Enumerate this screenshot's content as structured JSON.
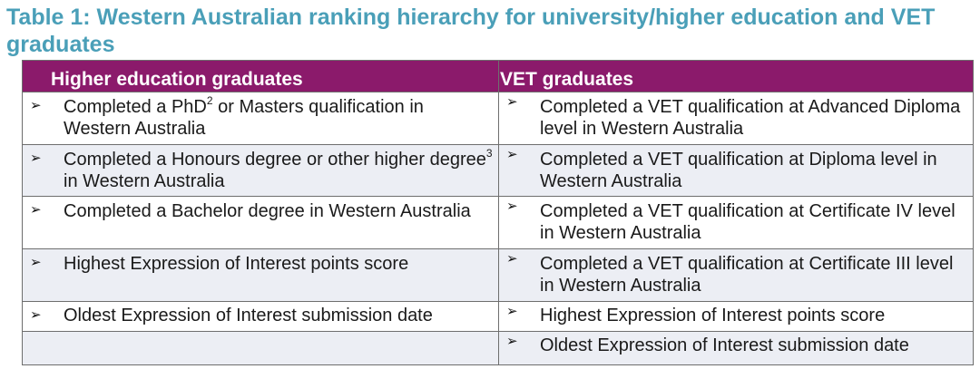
{
  "title": "Table 1: Western Australian ranking hierarchy for university/higher education and VET graduates",
  "headers": {
    "left": "Higher education graduates",
    "right": "VET graduates"
  },
  "arrow_glyph": "➢",
  "rows": [
    {
      "left": {
        "text": "Completed a PhD",
        "sup": "2",
        "text2": " or Masters qualification in Western Australia"
      },
      "right": {
        "text": "Completed a VET qualification at Advanced Diploma level in Western Australia"
      }
    },
    {
      "left": {
        "text": "Completed a Honours degree or other higher degree",
        "sup": "3",
        "text2": " in Western Australia"
      },
      "right": {
        "text": "Completed a VET qualification at Diploma level in Western Australia"
      }
    },
    {
      "left": {
        "text": "Completed a Bachelor degree in Western Australia"
      },
      "right": {
        "text": "Completed a VET qualification at Certificate IV level in Western Australia"
      }
    },
    {
      "left": {
        "text": "Highest Expression of Interest points score"
      },
      "right": {
        "text": "Completed a VET qualification at Certificate III level in Western Australia"
      }
    },
    {
      "left": {
        "text": "Oldest Expression of Interest submission date"
      },
      "right": {
        "text": "Highest Expression of Interest points score"
      }
    },
    {
      "left": null,
      "right": {
        "text": "Oldest Expression of Interest submission date"
      }
    }
  ],
  "colors": {
    "title": "#4a9fb8",
    "header_bg": "#8b1a6b",
    "row_shade": "#eceef4"
  }
}
